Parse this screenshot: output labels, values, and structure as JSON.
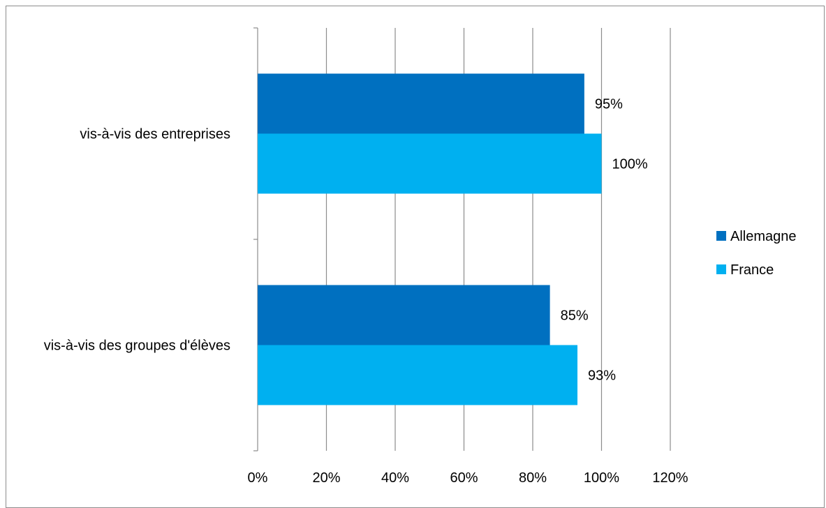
{
  "chart_data": {
    "type": "bar",
    "orientation": "horizontal",
    "categories": [
      "vis-à-vis des  entreprises",
      "vis-à-vis des groupes d'élèves"
    ],
    "series": [
      {
        "name": "Allemagne",
        "values": [
          95,
          85
        ],
        "labels": [
          "95%",
          "85%"
        ],
        "color": "#0070c0"
      },
      {
        "name": "France",
        "values": [
          100,
          93
        ],
        "labels": [
          "100%",
          "93%"
        ],
        "color": "#00b0f0"
      }
    ],
    "xlim": [
      0,
      120
    ],
    "xticks": [
      0,
      20,
      40,
      60,
      80,
      100,
      120
    ],
    "xtick_labels": [
      "0%",
      "20%",
      "40%",
      "60%",
      "80%",
      "100%",
      "120%"
    ],
    "title": "",
    "xlabel": "",
    "ylabel": "",
    "grid": "vertical",
    "legend": {
      "position": "right",
      "entries": [
        "Allemagne",
        "France"
      ]
    }
  }
}
